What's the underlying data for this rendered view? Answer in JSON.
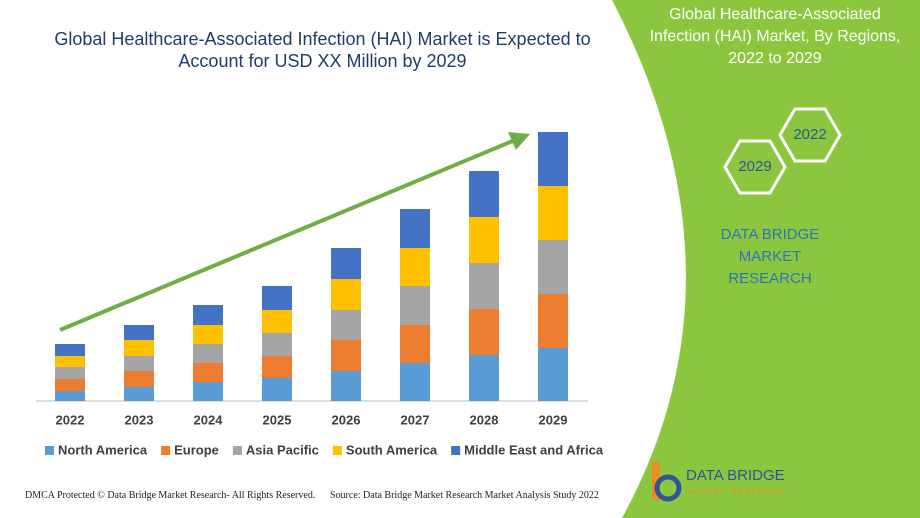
{
  "chart_data": {
    "type": "stacked-bar",
    "title": "Global Healthcare-Associated Infection (HAI) Market is Expected to Account for USD XX Million by 2029",
    "categories": [
      "2022",
      "2023",
      "2024",
      "2025",
      "2026",
      "2027",
      "2028",
      "2029"
    ],
    "series": [
      {
        "name": "North America",
        "color": "#5b9bd5",
        "values": [
          10,
          14,
          19,
          23,
          30,
          38,
          46,
          53
        ]
      },
      {
        "name": "Europe",
        "color": "#ed7d31",
        "values": [
          12,
          16,
          19,
          22,
          31,
          38,
          46,
          54
        ]
      },
      {
        "name": "Asia Pacific",
        "color": "#a5a5a5",
        "values": [
          12,
          15,
          19,
          23,
          30,
          39,
          46,
          54
        ]
      },
      {
        "name": "South America",
        "color": "#ffc000",
        "values": [
          11,
          16,
          19,
          23,
          31,
          38,
          46,
          54
        ]
      },
      {
        "name": "Middle East and Africa",
        "color": "#4472c4",
        "values": [
          12,
          15,
          20,
          24,
          31,
          39,
          46,
          54
        ]
      }
    ],
    "ylim": [
      0,
      269
    ],
    "legend": "bottom",
    "trend_arrow_color": "#70ad47"
  },
  "panel": {
    "title": "Global Healthcare-Associated Infection (HAI) Market, By Regions, 2022 to 2029",
    "hexagons": [
      "2022",
      "2029"
    ],
    "brand": "DATA BRIDGE MARKET RESEARCH",
    "logo": {
      "name": "DATA BRIDGE",
      "tagline": "MARKET RESEARCH"
    }
  },
  "footer": {
    "left": "DMCA Protected © Data Bridge Market Research- All Rights Reserved.",
    "right": "Source: Data Bridge Market Research Market Analysis Study 2022"
  }
}
